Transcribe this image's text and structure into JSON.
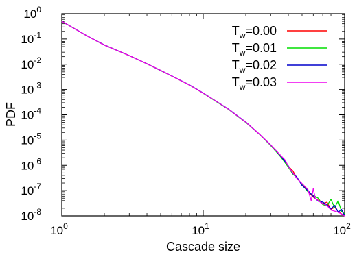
{
  "chart_data": {
    "type": "line",
    "xlabel": "Cascade size",
    "ylabel": "PDF",
    "xscale": "log",
    "yscale": "log",
    "xlim": [
      1,
      100
    ],
    "ylim": [
      1e-08,
      1
    ],
    "grid": false,
    "legend_position": "top-right",
    "x_ticks": [
      {
        "base": "10",
        "exp": "0",
        "value": 1
      },
      {
        "base": "10",
        "exp": "1",
        "value": 10
      },
      {
        "base": "10",
        "exp": "2",
        "value": 100
      }
    ],
    "y_ticks": [
      {
        "base": "10",
        "exp": "0",
        "value": 1
      },
      {
        "base": "10",
        "exp": "-1",
        "value": 0.1
      },
      {
        "base": "10",
        "exp": "-2",
        "value": 0.01
      },
      {
        "base": "10",
        "exp": "-3",
        "value": 0.001
      },
      {
        "base": "10",
        "exp": "-4",
        "value": 0.0001
      },
      {
        "base": "10",
        "exp": "-5",
        "value": 1e-05
      },
      {
        "base": "10",
        "exp": "-6",
        "value": 1e-06
      },
      {
        "base": "10",
        "exp": "-7",
        "value": 1e-07
      },
      {
        "base": "10",
        "exp": "-8",
        "value": 1e-08
      }
    ],
    "series": [
      {
        "label_main": "T",
        "label_sub": "w",
        "label_rest": "=0.00",
        "color": "#ff0000",
        "points": [
          [
            1,
            0.5
          ],
          [
            1.5,
            0.135
          ],
          [
            2,
            0.058
          ],
          [
            3,
            0.022
          ],
          [
            4,
            0.0105
          ],
          [
            5,
            0.0057
          ],
          [
            6,
            0.0034
          ],
          [
            8,
            0.0015
          ],
          [
            10,
            0.00072
          ],
          [
            12,
            0.00038
          ],
          [
            15,
            0.00017
          ],
          [
            20,
            5.1e-05
          ],
          [
            25,
            1.7e-05
          ],
          [
            30,
            6.3e-06
          ],
          [
            35,
            2.4e-06
          ],
          [
            40,
            9.2e-07
          ],
          [
            43,
            6.1e-07
          ],
          [
            46,
            3.1e-07
          ],
          [
            50,
            1.8e-07
          ],
          [
            55,
            9.5e-08
          ],
          [
            60,
            5.5e-08
          ],
          [
            65,
            4.2e-08
          ],
          [
            70,
            3e-08
          ],
          [
            75,
            3.5e-08
          ],
          [
            80,
            1.8e-08
          ],
          [
            85,
            2.2e-08
          ],
          [
            90,
            1.5e-08
          ],
          [
            95,
            1.2e-08
          ],
          [
            100,
            1e-08
          ]
        ]
      },
      {
        "label_main": "T",
        "label_sub": "w",
        "label_rest": "=0.01",
        "color": "#00dd00",
        "points": [
          [
            1,
            0.5
          ],
          [
            1.5,
            0.134
          ],
          [
            2,
            0.057
          ],
          [
            3,
            0.0219
          ],
          [
            4,
            0.0104
          ],
          [
            5,
            0.0056
          ],
          [
            6,
            0.0034
          ],
          [
            8,
            0.0015
          ],
          [
            10,
            0.00071
          ],
          [
            12,
            0.00037
          ],
          [
            15,
            0.000168
          ],
          [
            20,
            5e-05
          ],
          [
            25,
            1.68e-05
          ],
          [
            30,
            6.1e-06
          ],
          [
            35,
            2.3e-06
          ],
          [
            40,
            8.5e-07
          ],
          [
            43,
            4.5e-07
          ],
          [
            46,
            3.2e-07
          ],
          [
            50,
            1.7e-07
          ],
          [
            55,
            9e-08
          ],
          [
            60,
            6.5e-08
          ],
          [
            65,
            5e-08
          ],
          [
            70,
            2.8e-08
          ],
          [
            75,
            2.5e-08
          ],
          [
            80,
            4.5e-08
          ],
          [
            85,
            2.1e-08
          ],
          [
            90,
            4e-08
          ],
          [
            95,
            1.5e-08
          ],
          [
            100,
            1.2e-08
          ]
        ]
      },
      {
        "label_main": "T",
        "label_sub": "w",
        "label_rest": "=0.02",
        "color": "#0000cc",
        "points": [
          [
            1,
            0.5
          ],
          [
            1.5,
            0.135
          ],
          [
            2,
            0.058
          ],
          [
            3,
            0.0221
          ],
          [
            4,
            0.0105
          ],
          [
            5,
            0.0057
          ],
          [
            6,
            0.00345
          ],
          [
            8,
            0.00152
          ],
          [
            10,
            0.00073
          ],
          [
            12,
            0.00038
          ],
          [
            15,
            0.000172
          ],
          [
            20,
            5.2e-05
          ],
          [
            25,
            1.7e-05
          ],
          [
            30,
            6.4e-06
          ],
          [
            35,
            2.5e-06
          ],
          [
            40,
            9.5e-07
          ],
          [
            43,
            4.8e-07
          ],
          [
            46,
            3.4e-07
          ],
          [
            50,
            1.6e-07
          ],
          [
            55,
            1e-07
          ],
          [
            60,
            6e-08
          ],
          [
            65,
            3.8e-08
          ],
          [
            70,
            3.5e-08
          ],
          [
            75,
            2.8e-08
          ],
          [
            80,
            1.9e-08
          ],
          [
            85,
            2.6e-08
          ],
          [
            90,
            1.4e-08
          ],
          [
            95,
            1.8e-08
          ],
          [
            100,
            1e-08
          ]
        ]
      },
      {
        "label_main": "T",
        "label_sub": "w",
        "label_rest": "=0.03",
        "color": "#ee00ee",
        "points": [
          [
            1,
            0.5
          ],
          [
            1.5,
            0.134
          ],
          [
            2,
            0.057
          ],
          [
            3,
            0.022
          ],
          [
            4,
            0.0104
          ],
          [
            5,
            0.0057
          ],
          [
            6,
            0.0034
          ],
          [
            8,
            0.0015
          ],
          [
            10,
            0.00072
          ],
          [
            12,
            0.00038
          ],
          [
            15,
            0.00017
          ],
          [
            20,
            5.1e-05
          ],
          [
            25,
            1.7e-05
          ],
          [
            30,
            6.4e-06
          ],
          [
            35,
            2.6e-06
          ],
          [
            38,
            1.6e-06
          ],
          [
            40,
            9e-07
          ],
          [
            43,
            5e-07
          ],
          [
            46,
            3e-07
          ],
          [
            50,
            1.9e-07
          ],
          [
            55,
            1.1e-07
          ],
          [
            58,
            4e-08
          ],
          [
            60,
            1.2e-07
          ],
          [
            62,
            5e-08
          ],
          [
            65,
            4e-08
          ],
          [
            70,
            3e-08
          ],
          [
            75,
            2.6e-08
          ],
          [
            80,
            1.7e-08
          ],
          [
            90,
            1.4e-08
          ],
          [
            100,
            1e-08
          ]
        ]
      }
    ]
  }
}
